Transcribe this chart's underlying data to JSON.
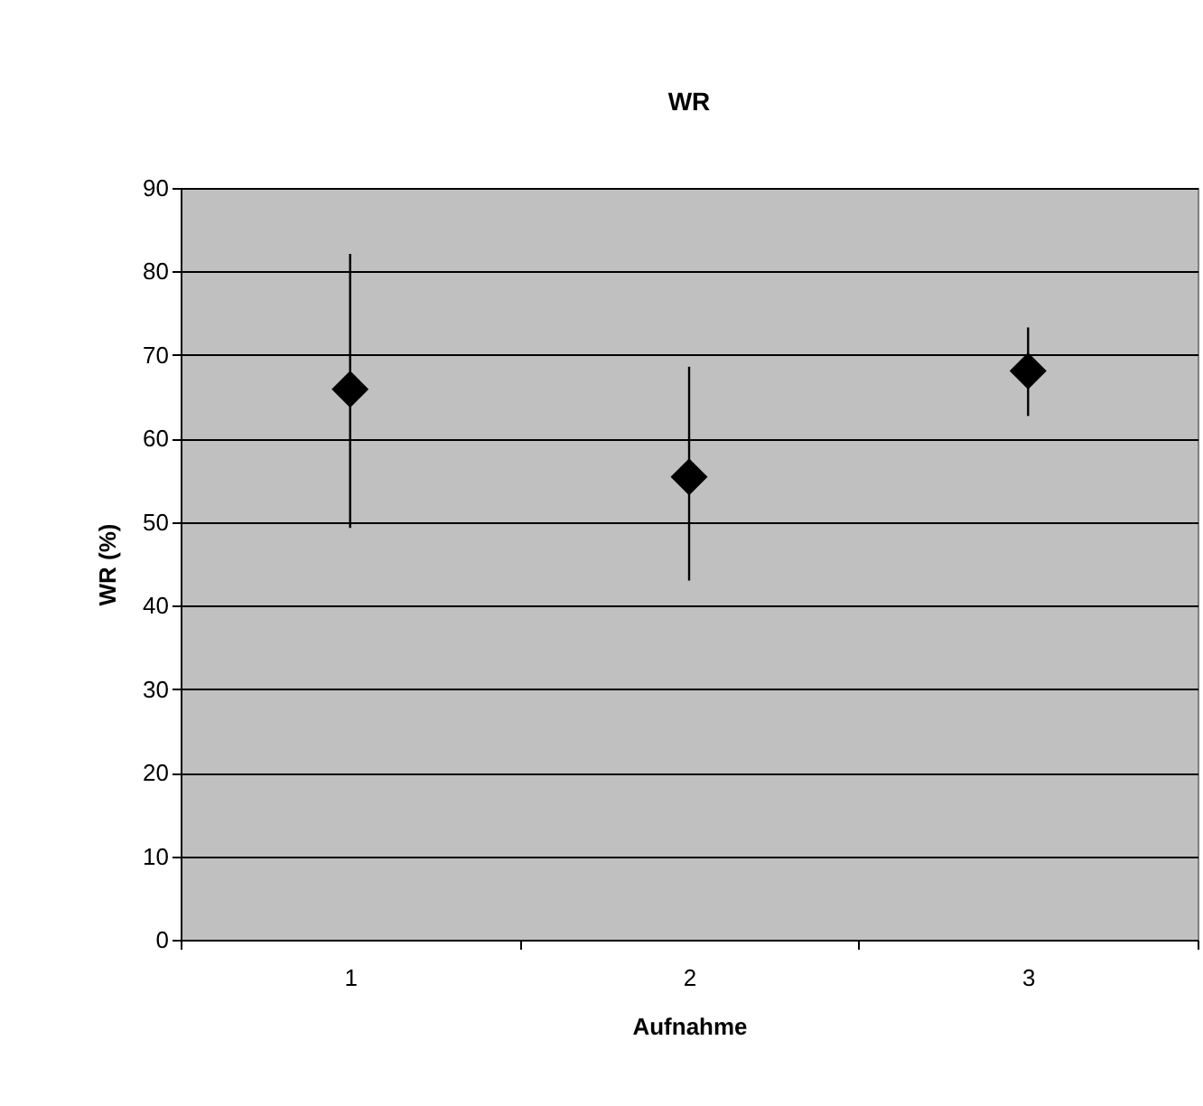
{
  "chart_data": {
    "type": "scatter",
    "title": "WR",
    "xlabel": "Aufnahme",
    "ylabel": "WR (%)",
    "categories": [
      "1",
      "2",
      "3"
    ],
    "series": [
      {
        "color": "#000000",
        "values": [
          65.9,
          55.4,
          68.1
        ],
        "errors": [
          [
            49.3,
            82.1
          ],
          [
            43.0,
            68.6
          ],
          [
            62.7,
            73.3
          ]
        ]
      }
    ],
    "ylim": [
      0,
      90
    ],
    "yticks": [
      0,
      10,
      20,
      30,
      40,
      50,
      60,
      70,
      80,
      90
    ],
    "grid": "y",
    "marker": "diamond",
    "legend": false
  }
}
